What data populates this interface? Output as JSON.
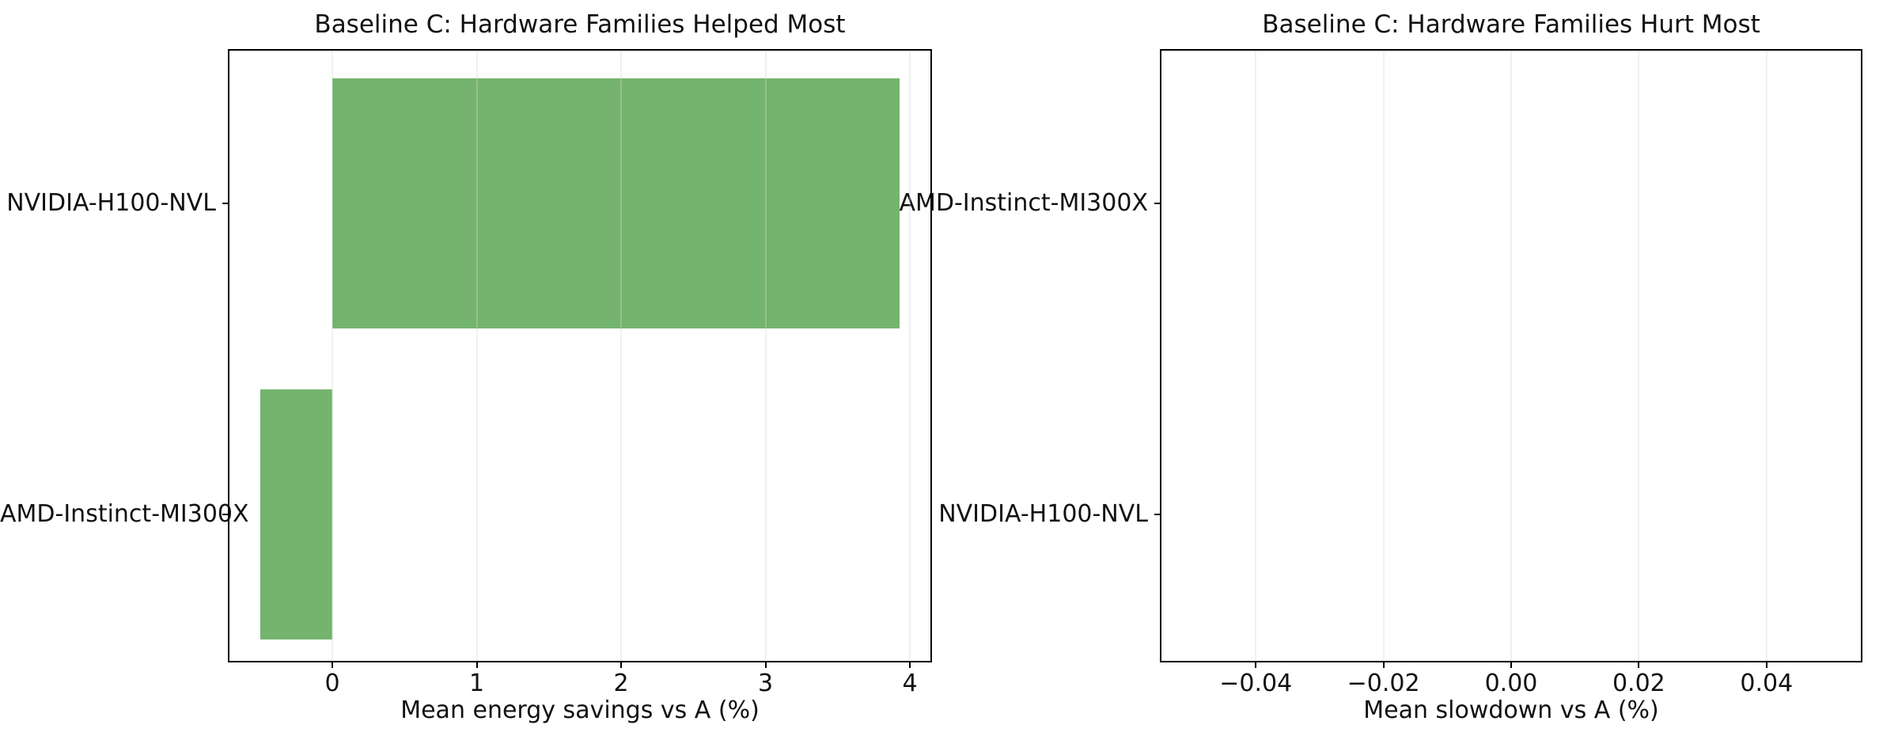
{
  "figure": {
    "background": "#ffffff"
  },
  "colors": {
    "bar_green": "#74b46e",
    "grid": "#ececec",
    "spine": "#000000",
    "text": "#111111"
  },
  "chart_data": [
    {
      "type": "bar",
      "orientation": "horizontal",
      "title": "Baseline C: Hardware Families Helped Most",
      "xlabel": "Mean energy savings vs A (%)",
      "categories": [
        "NVIDIA-H100-NVL",
        "AMD-Instinct-MI300X"
      ],
      "values": [
        3.93,
        -0.5
      ],
      "bar_color": "#74b46e",
      "xlim": [
        -0.718,
        4.148
      ],
      "xticks": {
        "values": [
          0,
          1,
          2,
          3,
          4
        ],
        "labels": [
          "0",
          "1",
          "2",
          "3",
          "4"
        ]
      },
      "grid": true,
      "legend": false
    },
    {
      "type": "bar",
      "orientation": "horizontal",
      "title": "Baseline C: Hardware Families Hurt Most",
      "xlabel": "Mean slowdown vs A (%)",
      "categories": [
        "AMD-Instinct-MI300X",
        "NVIDIA-H100-NVL"
      ],
      "values": [
        0.0,
        0.0
      ],
      "bar_color": "#74b46e",
      "xlim": [
        -0.0549,
        0.0549
      ],
      "xticks": {
        "values": [
          -0.04,
          -0.02,
          0.0,
          0.02,
          0.04
        ],
        "labels": [
          "−0.04",
          "−0.02",
          "0.00",
          "0.02",
          "0.04"
        ]
      },
      "grid": true,
      "legend": false
    }
  ]
}
